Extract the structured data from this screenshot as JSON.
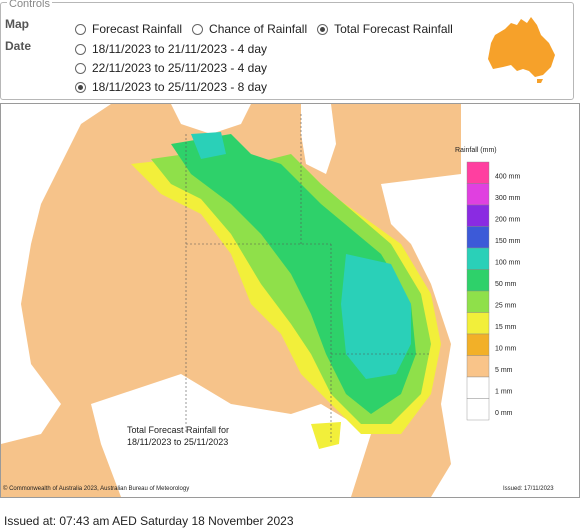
{
  "controls": {
    "legend_title": "Controls",
    "map_label": "Map",
    "date_label": "Date",
    "map_options": [
      {
        "label": "Forecast Rainfall",
        "selected": false
      },
      {
        "label": "Chance of Rainfall",
        "selected": false
      },
      {
        "label": "Total Forecast Rainfall",
        "selected": true
      }
    ],
    "date_options": [
      {
        "label": "18/11/2023 to 21/11/2023 - 4 day",
        "selected": false
      },
      {
        "label": "22/11/2023 to 25/11/2023 - 4 day",
        "selected": false
      },
      {
        "label": "18/11/2023 to 25/11/2023 - 8 day",
        "selected": true
      }
    ]
  },
  "map": {
    "caption_line1": "Total Forecast Rainfall for",
    "caption_line2": "18/11/2023 to 25/11/2023",
    "copyright": "© Commonwealth of Australia 2023, Australian Bureau of Meteorology",
    "issued_small": "Issued: 17/11/2023",
    "legend": {
      "title": "Rainfall (mm)",
      "items": [
        {
          "label": "400 mm",
          "color": "#ff3fa0"
        },
        {
          "label": "300 mm",
          "color": "#e040e0"
        },
        {
          "label": "200 mm",
          "color": "#8a2be2"
        },
        {
          "label": "150 mm",
          "color": "#3c5ad8"
        },
        {
          "label": "100 mm",
          "color": "#2ad0b8"
        },
        {
          "label": "50 mm",
          "color": "#2ed16a"
        },
        {
          "label": "25 mm",
          "color": "#8fe04a"
        },
        {
          "label": "15 mm",
          "color": "#f2ef3a"
        },
        {
          "label": "10 mm",
          "color": "#f2b028"
        },
        {
          "label": "5 mm",
          "color": "#f9c489"
        },
        {
          "label": "1 mm",
          "color": "#ffffff"
        },
        {
          "label": "0 mm",
          "color": "#ffffff"
        }
      ]
    }
  },
  "issued": "Issued at: 07:43 am AED Saturday 18 November 2023",
  "colors": {
    "land_low": "#f6c38a",
    "ocean": "#ffffff",
    "australia_icon": "#f6a12a"
  }
}
